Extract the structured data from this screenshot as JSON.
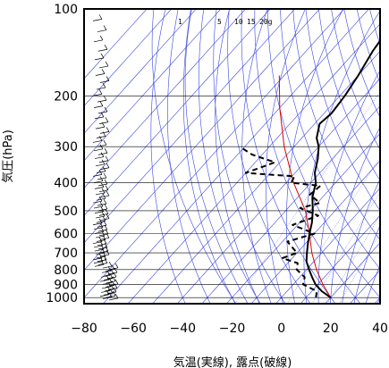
{
  "chart_data": {
    "type": "line",
    "title": "",
    "xlabel": "気温(実線), 露点(破線)",
    "ylabel": "気圧(hPa)",
    "xlim": [
      -80,
      40
    ],
    "ylim": [
      1050,
      100
    ],
    "y_scale": "log",
    "x_ticks": [
      -80,
      -60,
      -40,
      -20,
      0,
      20,
      40
    ],
    "y_ticks": [
      100,
      200,
      300,
      400,
      500,
      600,
      700,
      800,
      900,
      1000
    ],
    "mixing_ratio_labels": [
      "1",
      "5",
      "10",
      "15",
      "20g"
    ],
    "colors": {
      "temperature": "#000000",
      "dewpoint": "#000000",
      "parcel": "#dd0000",
      "reference_lines": "#3b46e0",
      "isobars": "#000000"
    },
    "series": [
      {
        "points": [
          {
            "x": 20,
            "y": 1000
          },
          {
            "x": 14,
            "y": 950
          },
          {
            "x": 9,
            "y": 900
          },
          {
            "x": 5,
            "y": 850
          },
          {
            "x": 1,
            "y": 800
          },
          {
            "x": -3,
            "y": 750
          },
          {
            "x": -6,
            "y": 700
          },
          {
            "x": -9,
            "y": 650
          },
          {
            "x": -12,
            "y": 600
          },
          {
            "x": -15,
            "y": 550
          },
          {
            "x": -19,
            "y": 500
          },
          {
            "x": -24,
            "y": 450
          },
          {
            "x": -28,
            "y": 400
          },
          {
            "x": -32,
            "y": 370
          },
          {
            "x": -36,
            "y": 330
          },
          {
            "x": -40,
            "y": 300
          },
          {
            "x": -44,
            "y": 280
          },
          {
            "x": -48,
            "y": 250
          },
          {
            "x": -47,
            "y": 230
          },
          {
            "x": -48,
            "y": 200
          },
          {
            "x": -50,
            "y": 170
          },
          {
            "x": -53,
            "y": 140
          },
          {
            "x": -54,
            "y": 126
          }
        ]
      },
      {
        "dashed": true,
        "points": [
          {
            "x": 14,
            "y": 1000
          },
          {
            "x": 12,
            "y": 950
          },
          {
            "x": 4,
            "y": 900
          },
          {
            "x": 2,
            "y": 850
          },
          {
            "x": -4,
            "y": 800
          },
          {
            "x": -6,
            "y": 760
          },
          {
            "x": -14,
            "y": 730
          },
          {
            "x": -10,
            "y": 700
          },
          {
            "x": -18,
            "y": 640
          },
          {
            "x": -10,
            "y": 600
          },
          {
            "x": -22,
            "y": 560
          },
          {
            "x": -15,
            "y": 520
          },
          {
            "x": -25,
            "y": 490
          },
          {
            "x": -19,
            "y": 470
          },
          {
            "x": -26,
            "y": 440
          },
          {
            "x": -25,
            "y": 410
          },
          {
            "x": -38,
            "y": 400
          },
          {
            "x": -39,
            "y": 380
          },
          {
            "x": -60,
            "y": 370
          },
          {
            "x": -52,
            "y": 340
          },
          {
            "x": -64,
            "y": 320
          },
          {
            "x": -72,
            "y": 300
          }
        ]
      },
      {
        "points": [
          {
            "x": 20,
            "y": 1000
          },
          {
            "x": 12,
            "y": 900
          },
          {
            "x": 4,
            "y": 800
          },
          {
            "x": -4,
            "y": 700
          },
          {
            "x": -12,
            "y": 600
          },
          {
            "x": -22,
            "y": 500
          },
          {
            "x": -37,
            "y": 400
          },
          {
            "x": -54,
            "y": 300
          },
          {
            "x": -70,
            "y": 220
          },
          {
            "x": -82,
            "y": 170
          }
        ]
      }
    ],
    "wind_barbs": true
  }
}
